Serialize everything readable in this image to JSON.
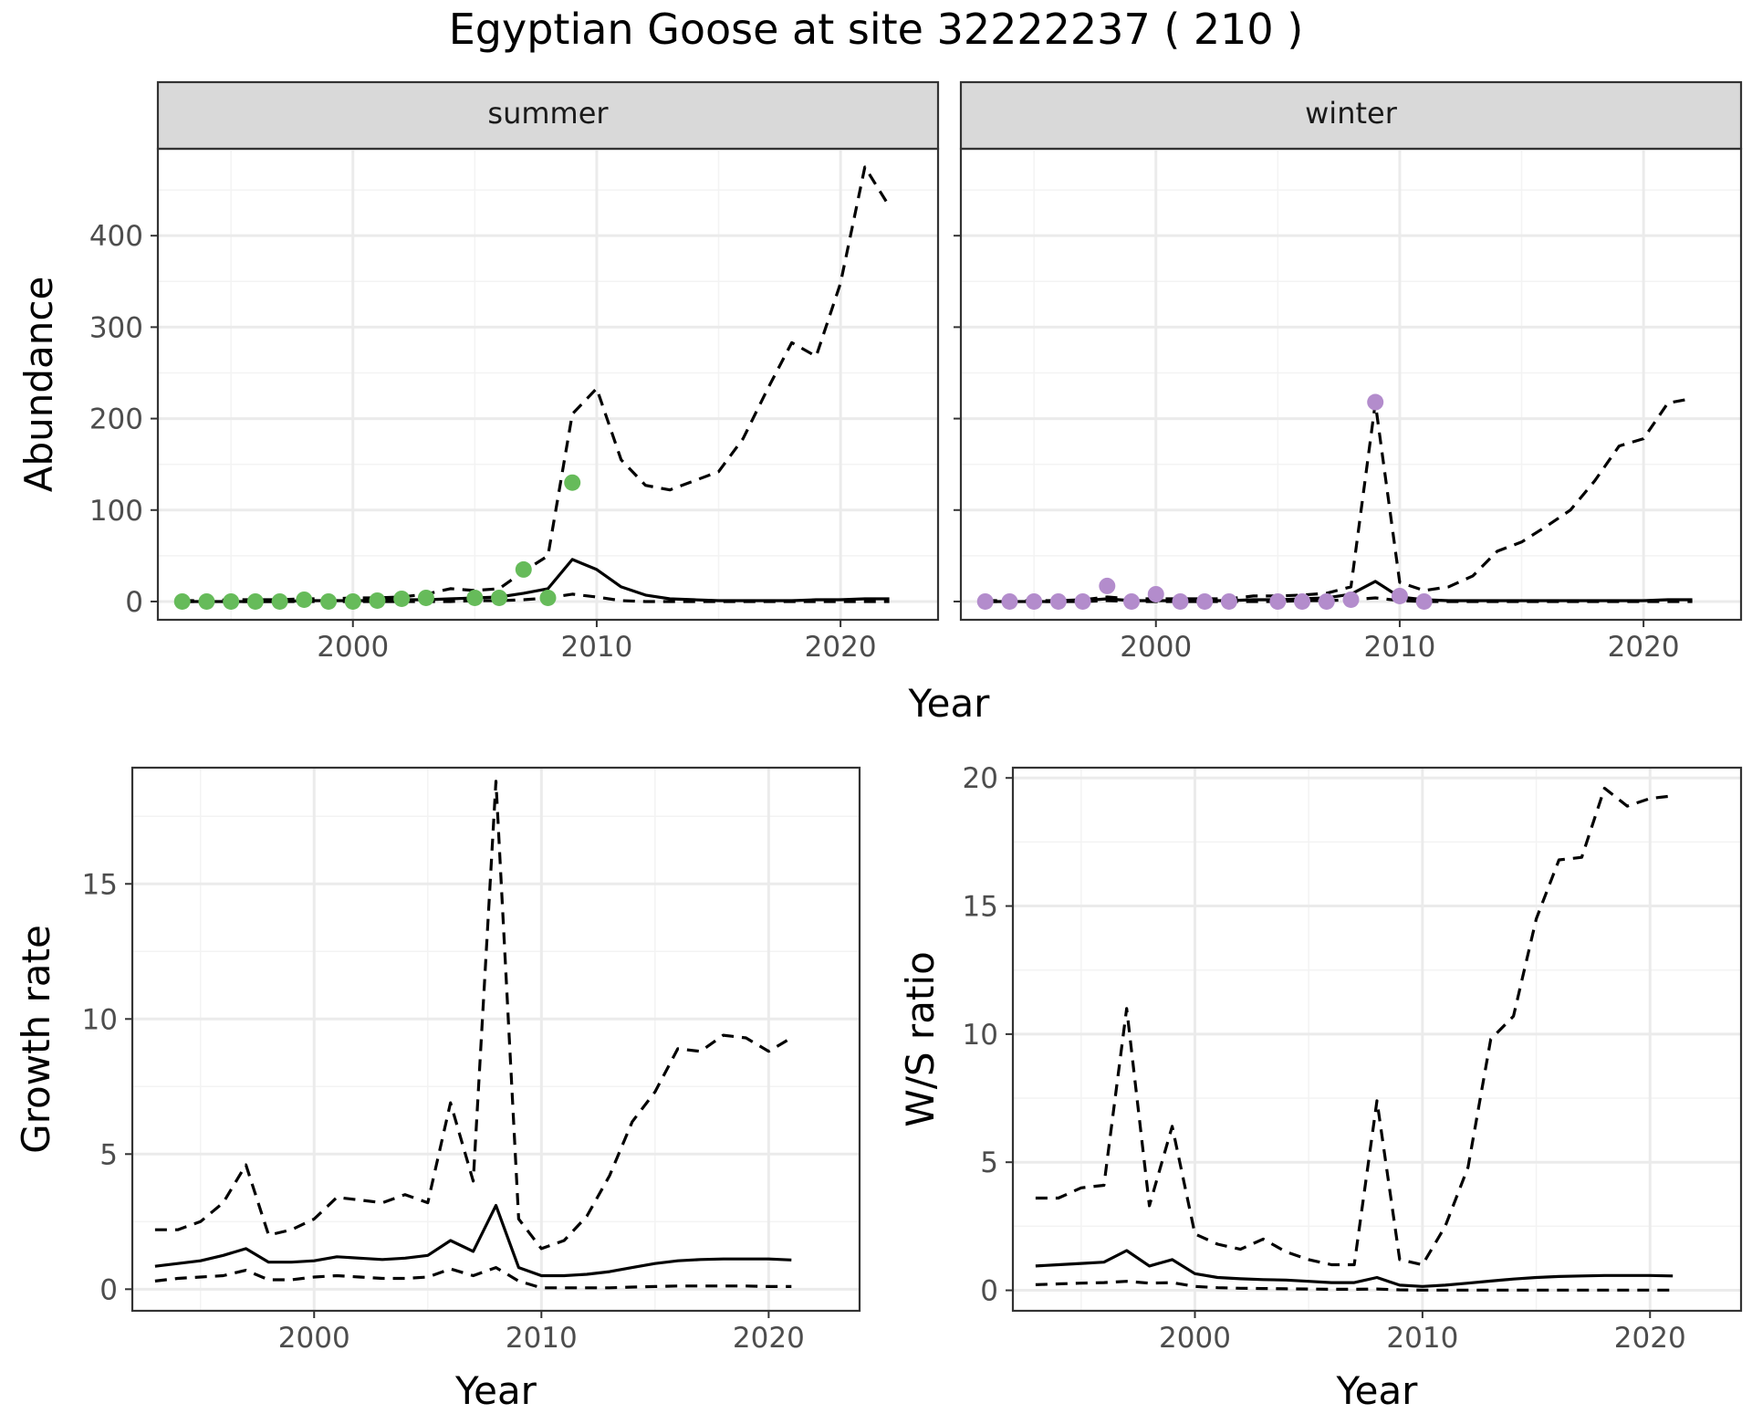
{
  "figure": {
    "title": "Egyptian Goose at site 32222237 ( 210 )"
  },
  "colors": {
    "summer_points": "#66bb5a",
    "winter_points": "#b38ccc",
    "lines": "#000000",
    "strip_fill": "#d9d9d9",
    "grid_major": "#ebebeb",
    "grid_minor": "#f3f3f3",
    "panel_border": "#333333",
    "tick_text": "#4d4d4d"
  },
  "chart_data": [
    {
      "id": "abundance",
      "type": "line",
      "facets": [
        "summer",
        "winter"
      ],
      "xlabel": "Year",
      "ylabel": "Abundance",
      "xlim": [
        1992,
        2024
      ],
      "ylim": [
        -20,
        495
      ],
      "x_ticks": [
        2000,
        2010,
        2020
      ],
      "y_ticks": [
        0,
        100,
        200,
        300,
        400
      ],
      "grid": true,
      "panels": [
        {
          "strip": "summer",
          "series": [
            {
              "role": "estimate",
              "style": "solid",
              "x": [
                1993,
                1994,
                1995,
                1996,
                1997,
                1998,
                1999,
                2000,
                2001,
                2002,
                2003,
                2004,
                2005,
                2006,
                2007,
                2008,
                2009,
                2010,
                2011,
                2012,
                2013,
                2014,
                2015,
                2016,
                2017,
                2018,
                2019,
                2020,
                2021,
                2022
              ],
              "y": [
                0,
                0,
                0,
                0,
                0,
                1,
                1,
                1,
                1,
                2,
                2,
                3,
                4,
                5,
                9,
                14,
                46,
                35,
                16,
                7,
                3,
                2,
                1,
                1,
                1,
                1,
                2,
                2,
                3,
                3
              ]
            },
            {
              "role": "upper",
              "style": "dashed",
              "x": [
                1993,
                1994,
                1995,
                1996,
                1997,
                1998,
                1999,
                2000,
                2001,
                2002,
                2003,
                2004,
                2005,
                2006,
                2007,
                2008,
                2009,
                2010,
                2011,
                2012,
                2013,
                2014,
                2015,
                2016,
                2017,
                2018,
                2019,
                2020,
                2021,
                2022
              ],
              "y": [
                1,
                1,
                2,
                2,
                2,
                3,
                3,
                4,
                4,
                5,
                8,
                14,
                12,
                14,
                33,
                50,
                205,
                233,
                155,
                127,
                122,
                132,
                142,
                178,
                232,
                283,
                268,
                348,
                475,
                432
              ]
            },
            {
              "role": "lower",
              "style": "dashed",
              "x": [
                1993,
                1994,
                1995,
                1996,
                1997,
                1998,
                1999,
                2000,
                2001,
                2002,
                2003,
                2004,
                2005,
                2006,
                2007,
                2008,
                2009,
                2010,
                2011,
                2012,
                2013,
                2014,
                2015,
                2016,
                2017,
                2018,
                2019,
                2020,
                2021,
                2022
              ],
              "y": [
                0,
                0,
                0,
                0,
                0,
                0,
                0,
                0,
                0,
                0,
                0,
                0,
                1,
                1,
                2,
                4,
                8,
                5,
                1,
                0,
                0,
                0,
                0,
                0,
                0,
                0,
                0,
                0,
                0,
                0
              ]
            },
            {
              "role": "observed",
              "style": "points",
              "x": [
                1993,
                1994,
                1995,
                1996,
                1997,
                1998,
                1999,
                2000,
                2001,
                2002,
                2003,
                2005,
                2006,
                2007,
                2008,
                2009
              ],
              "y": [
                0,
                0,
                0,
                0,
                0,
                2,
                0,
                0,
                1,
                3,
                4,
                4,
                4,
                35,
                4,
                130
              ]
            }
          ]
        },
        {
          "strip": "winter",
          "series": [
            {
              "role": "estimate",
              "style": "solid",
              "x": [
                1993,
                1994,
                1995,
                1996,
                1997,
                1998,
                1999,
                2000,
                2001,
                2002,
                2003,
                2004,
                2005,
                2006,
                2007,
                2008,
                2009,
                2010,
                2011,
                2012,
                2013,
                2014,
                2015,
                2016,
                2017,
                2018,
                2019,
                2020,
                2021,
                2022
              ],
              "y": [
                0,
                0,
                0,
                0,
                1,
                3,
                1,
                1,
                1,
                1,
                1,
                2,
                2,
                3,
                4,
                8,
                22,
                5,
                2,
                1,
                1,
                1,
                1,
                1,
                1,
                1,
                1,
                1,
                2,
                2
              ]
            },
            {
              "role": "upper",
              "style": "dashed",
              "x": [
                1993,
                1994,
                1995,
                1996,
                1997,
                1998,
                1999,
                2000,
                2001,
                2002,
                2003,
                2004,
                2005,
                2006,
                2007,
                2008,
                2009,
                2010,
                2011,
                2012,
                2013,
                2014,
                2015,
                2016,
                2017,
                2018,
                2019,
                2020,
                2021,
                2022
              ],
              "y": [
                1,
                1,
                1,
                1,
                2,
                5,
                3,
                3,
                3,
                3,
                3,
                6,
                6,
                7,
                9,
                16,
                217,
                21,
                12,
                16,
                28,
                55,
                65,
                82,
                100,
                132,
                170,
                178,
                217,
                222
              ]
            },
            {
              "role": "lower",
              "style": "dashed",
              "x": [
                1993,
                1994,
                1995,
                1996,
                1997,
                1998,
                1999,
                2000,
                2001,
                2002,
                2003,
                2004,
                2005,
                2006,
                2007,
                2008,
                2009,
                2010,
                2011,
                2012,
                2013,
                2014,
                2015,
                2016,
                2017,
                2018,
                2019,
                2020,
                2021,
                2022
              ],
              "y": [
                0,
                0,
                0,
                0,
                0,
                1,
                0,
                0,
                0,
                0,
                0,
                0,
                0,
                1,
                1,
                2,
                4,
                1,
                0,
                0,
                0,
                0,
                0,
                0,
                0,
                0,
                0,
                0,
                0,
                0
              ]
            },
            {
              "role": "observed",
              "style": "points",
              "x": [
                1993,
                1994,
                1995,
                1996,
                1997,
                1998,
                1999,
                2000,
                2001,
                2002,
                2003,
                2005,
                2006,
                2007,
                2008,
                2009,
                2010,
                2011
              ],
              "y": [
                0,
                0,
                0,
                0,
                0,
                17,
                0,
                8,
                0,
                0,
                0,
                0,
                0,
                0,
                2,
                218,
                6,
                0
              ]
            }
          ]
        }
      ]
    },
    {
      "id": "growth",
      "type": "line",
      "xlabel": "Year",
      "ylabel": "Growth rate",
      "xlim": [
        1992,
        2024
      ],
      "ylim": [
        -0.8,
        19.3
      ],
      "x_ticks": [
        2000,
        2010,
        2020
      ],
      "y_ticks": [
        0,
        5,
        10,
        15
      ],
      "grid": true,
      "series": [
        {
          "role": "estimate",
          "style": "solid",
          "x": [
            1993,
            1994,
            1995,
            1996,
            1997,
            1998,
            1999,
            2000,
            2001,
            2002,
            2003,
            2004,
            2005,
            2006,
            2007,
            2008,
            2009,
            2010,
            2011,
            2012,
            2013,
            2014,
            2015,
            2016,
            2017,
            2018,
            2019,
            2020,
            2021
          ],
          "y": [
            0.85,
            0.95,
            1.05,
            1.25,
            1.5,
            1.0,
            1.0,
            1.05,
            1.2,
            1.15,
            1.1,
            1.15,
            1.25,
            1.8,
            1.4,
            3.1,
            0.8,
            0.5,
            0.5,
            0.55,
            0.65,
            0.8,
            0.95,
            1.05,
            1.1,
            1.12,
            1.12,
            1.12,
            1.08
          ]
        },
        {
          "role": "upper",
          "style": "dashed",
          "x": [
            1993,
            1994,
            1995,
            1996,
            1997,
            1998,
            1999,
            2000,
            2001,
            2002,
            2003,
            2004,
            2005,
            2006,
            2007,
            2008,
            2009,
            2010,
            2011,
            2012,
            2013,
            2014,
            2015,
            2016,
            2017,
            2018,
            2019,
            2020,
            2021
          ],
          "y": [
            2.2,
            2.2,
            2.5,
            3.2,
            4.6,
            2.0,
            2.2,
            2.6,
            3.4,
            3.3,
            3.2,
            3.5,
            3.2,
            6.9,
            4.0,
            18.8,
            2.6,
            1.5,
            1.8,
            2.7,
            4.2,
            6.2,
            7.3,
            8.9,
            8.8,
            9.4,
            9.3,
            8.8,
            9.3
          ]
        },
        {
          "role": "lower",
          "style": "dashed",
          "x": [
            1993,
            1994,
            1995,
            1996,
            1997,
            1998,
            1999,
            2000,
            2001,
            2002,
            2003,
            2004,
            2005,
            2006,
            2007,
            2008,
            2009,
            2010,
            2011,
            2012,
            2013,
            2014,
            2015,
            2016,
            2017,
            2018,
            2019,
            2020,
            2021
          ],
          "y": [
            0.3,
            0.4,
            0.45,
            0.5,
            0.7,
            0.35,
            0.35,
            0.45,
            0.5,
            0.45,
            0.4,
            0.4,
            0.45,
            0.75,
            0.5,
            0.8,
            0.3,
            0.05,
            0.05,
            0.05,
            0.05,
            0.08,
            0.1,
            0.12,
            0.12,
            0.12,
            0.12,
            0.1,
            0.1
          ]
        }
      ]
    },
    {
      "id": "ws_ratio",
      "type": "line",
      "xlabel": "Year",
      "ylabel": "W/S ratio",
      "xlim": [
        1992,
        2024
      ],
      "ylim": [
        -0.8,
        20.4
      ],
      "x_ticks": [
        2000,
        2010,
        2020
      ],
      "y_ticks": [
        0,
        5,
        10,
        15,
        20
      ],
      "grid": true,
      "series": [
        {
          "role": "estimate",
          "style": "solid",
          "x": [
            1993,
            1994,
            1995,
            1996,
            1997,
            1998,
            1999,
            2000,
            2001,
            2002,
            2003,
            2004,
            2005,
            2006,
            2007,
            2008,
            2009,
            2010,
            2011,
            2012,
            2013,
            2014,
            2015,
            2016,
            2017,
            2018,
            2019,
            2020,
            2021
          ],
          "y": [
            0.95,
            1.0,
            1.05,
            1.1,
            1.55,
            0.95,
            1.2,
            0.65,
            0.5,
            0.45,
            0.42,
            0.4,
            0.35,
            0.3,
            0.3,
            0.5,
            0.2,
            0.15,
            0.2,
            0.28,
            0.36,
            0.44,
            0.5,
            0.54,
            0.56,
            0.58,
            0.58,
            0.58,
            0.56
          ]
        },
        {
          "role": "upper",
          "style": "dashed",
          "x": [
            1993,
            1994,
            1995,
            1996,
            1997,
            1998,
            1999,
            2000,
            2001,
            2002,
            2003,
            2004,
            2005,
            2006,
            2007,
            2008,
            2009,
            2010,
            2011,
            2012,
            2013,
            2014,
            2015,
            2016,
            2017,
            2018,
            2019,
            2020,
            2021
          ],
          "y": [
            3.6,
            3.6,
            4.0,
            4.1,
            11.0,
            3.3,
            6.4,
            2.2,
            1.8,
            1.6,
            2.0,
            1.5,
            1.2,
            1.0,
            1.0,
            7.4,
            1.2,
            1.0,
            2.5,
            4.8,
            9.8,
            10.7,
            14.5,
            16.8,
            16.9,
            19.6,
            18.9,
            19.2,
            19.3
          ]
        },
        {
          "role": "lower",
          "style": "dashed",
          "x": [
            1993,
            1994,
            1995,
            1996,
            1997,
            1998,
            1999,
            2000,
            2001,
            2002,
            2003,
            2004,
            2005,
            2006,
            2007,
            2008,
            2009,
            2010,
            2011,
            2012,
            2013,
            2014,
            2015,
            2016,
            2017,
            2018,
            2019,
            2020,
            2021
          ],
          "y": [
            0.22,
            0.25,
            0.28,
            0.3,
            0.35,
            0.28,
            0.3,
            0.15,
            0.1,
            0.08,
            0.07,
            0.06,
            0.05,
            0.04,
            0.04,
            0.05,
            0.02,
            0.01,
            0.01,
            0.01,
            0.01,
            0.01,
            0.01,
            0.01,
            0.01,
            0.01,
            0.01,
            0.01,
            0.01
          ]
        }
      ]
    }
  ]
}
